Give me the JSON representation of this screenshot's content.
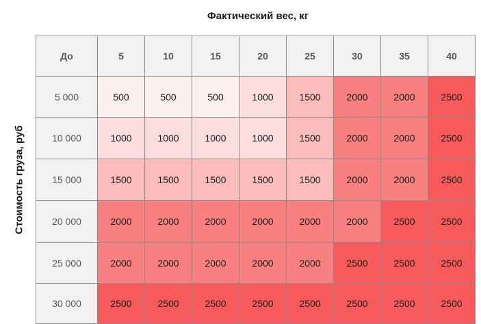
{
  "chart_data": {
    "type": "heatmap",
    "title": "Фактический вес, кг",
    "ylabel": "Стоимость груза, руб",
    "corner_label": "До",
    "x": [
      "5",
      "10",
      "15",
      "20",
      "25",
      "30",
      "35",
      "40"
    ],
    "y": [
      "5 000",
      "10 000",
      "15 000",
      "20 000",
      "25 000",
      "30 000"
    ],
    "values": [
      [
        500,
        500,
        500,
        1000,
        1500,
        2000,
        2000,
        2500
      ],
      [
        1000,
        1000,
        1000,
        1000,
        1500,
        2000,
        2000,
        2500
      ],
      [
        1500,
        1500,
        1500,
        1500,
        1500,
        2000,
        2000,
        2500
      ],
      [
        2000,
        2000,
        2000,
        2000,
        2000,
        2000,
        2500,
        2500
      ],
      [
        2000,
        2000,
        2000,
        2000,
        2000,
        2500,
        2500,
        2500
      ],
      [
        2500,
        2500,
        2500,
        2500,
        2500,
        2500,
        2500,
        2500
      ]
    ],
    "color_scale": {
      "500": "#fdf0f0",
      "1000": "#fcdede",
      "1500": "#fbbcbc",
      "2000": "#f88080",
      "2500": "#f65a5a"
    }
  }
}
